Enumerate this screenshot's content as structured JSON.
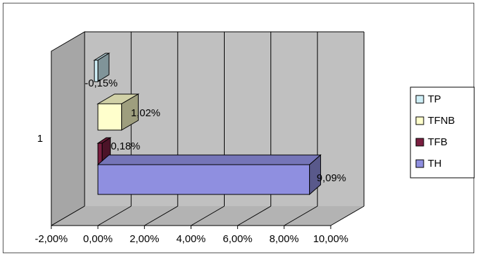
{
  "chart_data": {
    "type": "bar",
    "orientation": "horizontal",
    "three_d": true,
    "categories": [
      "1"
    ],
    "series": [
      {
        "name": "TP",
        "values": [
          -0.0015
        ],
        "label": "-0,15%",
        "color": "#cfeff7"
      },
      {
        "name": "TFNB",
        "values": [
          0.0102
        ],
        "label": "1,02%",
        "color": "#ffffcc"
      },
      {
        "name": "TFB",
        "values": [
          0.0018
        ],
        "label": "0,18%",
        "color": "#7a1f40"
      },
      {
        "name": "TH",
        "values": [
          0.0909
        ],
        "label": "9,09%",
        "color": "#8f8fe0"
      }
    ],
    "x_ticks": [
      "-2,00%",
      "0,00%",
      "2,00%",
      "4,00%",
      "6,00%",
      "8,00%",
      "10,00%"
    ],
    "xlim": [
      -0.02,
      0.1
    ],
    "grid": true,
    "legend_position": "right",
    "colors": {
      "wall": "#c0c0c0",
      "side_wall": "#a6a6a6",
      "floor": "#b3b3b3",
      "grid": "#000000"
    }
  }
}
